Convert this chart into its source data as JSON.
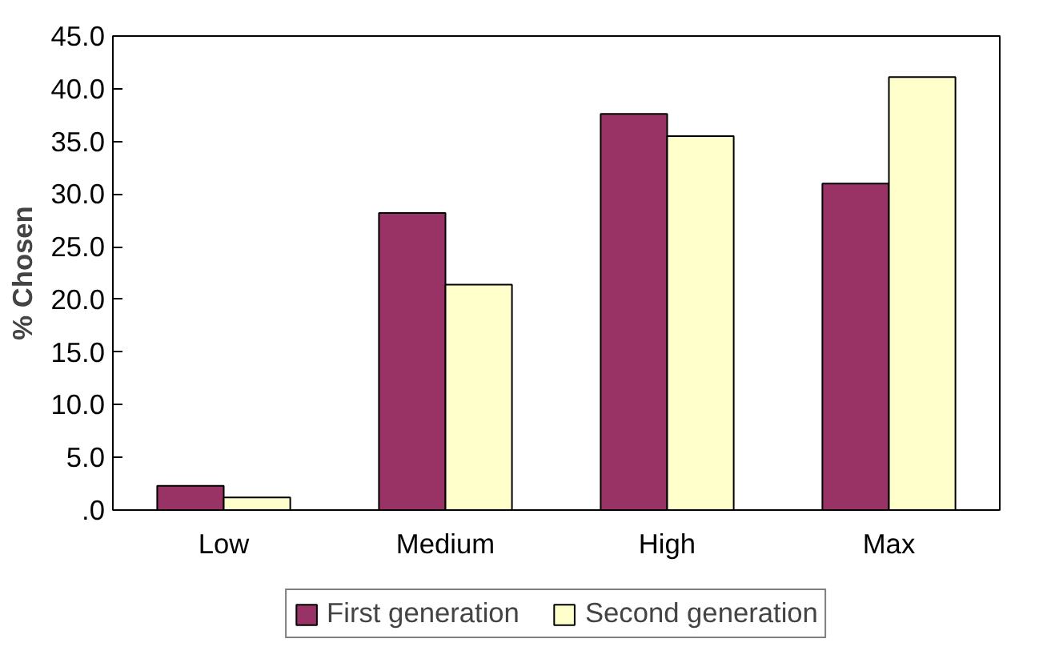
{
  "chart_data": {
    "type": "bar",
    "ylabel": "% Chosen",
    "categories": [
      "Low",
      "Medium",
      "High",
      "Max"
    ],
    "series": [
      {
        "name": "First generation",
        "color": "#993366",
        "values": [
          2.3,
          28.2,
          37.6,
          31.0
        ]
      },
      {
        "name": "Second generation",
        "color": "#ffffcc",
        "values": [
          1.2,
          21.4,
          35.5,
          41.1
        ]
      }
    ],
    "ylim": [
      0,
      45
    ],
    "yticks": [
      {
        "value": 0,
        "label": ".0"
      },
      {
        "value": 5,
        "label": "5.0"
      },
      {
        "value": 10,
        "label": "10.0"
      },
      {
        "value": 15,
        "label": "15.0"
      },
      {
        "value": 20,
        "label": "20.0"
      },
      {
        "value": 25,
        "label": "25.0"
      },
      {
        "value": 30,
        "label": "30.0"
      },
      {
        "value": 35,
        "label": "35.0"
      },
      {
        "value": 40,
        "label": "40.0"
      },
      {
        "value": 45,
        "label": "45.0"
      }
    ],
    "grid": false,
    "legend": "bottom"
  }
}
